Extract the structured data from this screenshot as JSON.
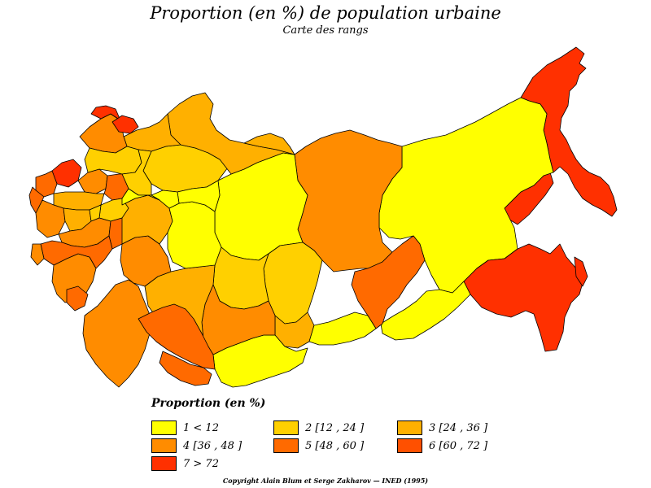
{
  "title": "Proportion (en %) de population urbaine",
  "subtitle": "Carte des rangs",
  "legend": {
    "title": "Proportion (en %)",
    "items": [
      {
        "label": "1  <  12",
        "color": "#ffff00"
      },
      {
        "label": "2 [12 , 24 ]",
        "color": "#ffd000"
      },
      {
        "label": "3 [24 , 36 ]",
        "color": "#ffb000"
      },
      {
        "label": "4 [36 , 48 ]",
        "color": "#ff8c00"
      },
      {
        "label": "5 [48 , 60 ]",
        "color": "#ff6a00"
      },
      {
        "label": "6 [60 , 72 ]",
        "color": "#ff5000"
      },
      {
        "label": "7  >  72",
        "color": "#ff3000"
      }
    ]
  },
  "copyright": "Copyright Alain Blum et Serge Zakharov  —  INED (1995)"
}
